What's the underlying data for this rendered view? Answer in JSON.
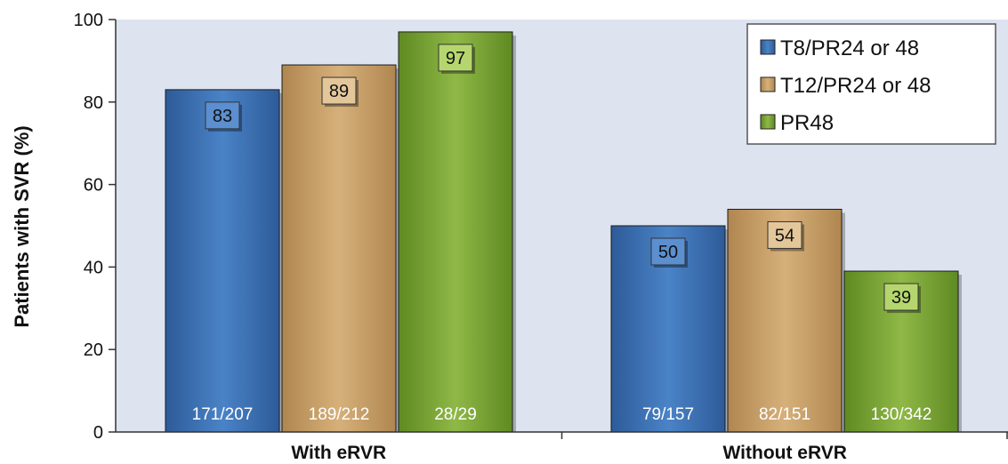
{
  "chart_data": {
    "type": "bar",
    "ylabel": "Patients with SVR (%)",
    "ylim": [
      0,
      100
    ],
    "yticks": [
      0,
      20,
      40,
      60,
      80,
      100
    ],
    "categories": [
      "With eRVR",
      "Without eRVR"
    ],
    "series": [
      {
        "name": "T8/PR24 or 48",
        "color": "#3d72b8",
        "values": [
          83,
          50
        ],
        "labels": [
          "171/207",
          "79/157"
        ]
      },
      {
        "name": "T12/PR24 or 48",
        "color": "#c7a068",
        "values": [
          89,
          54
        ],
        "labels": [
          "189/212",
          "82/151"
        ]
      },
      {
        "name": "PR48",
        "color": "#7ea63a",
        "values": [
          97,
          39
        ],
        "labels": [
          "28/29",
          "130/342"
        ]
      }
    ],
    "legend_position": "top-right",
    "plot_background": "#dde3ef"
  }
}
